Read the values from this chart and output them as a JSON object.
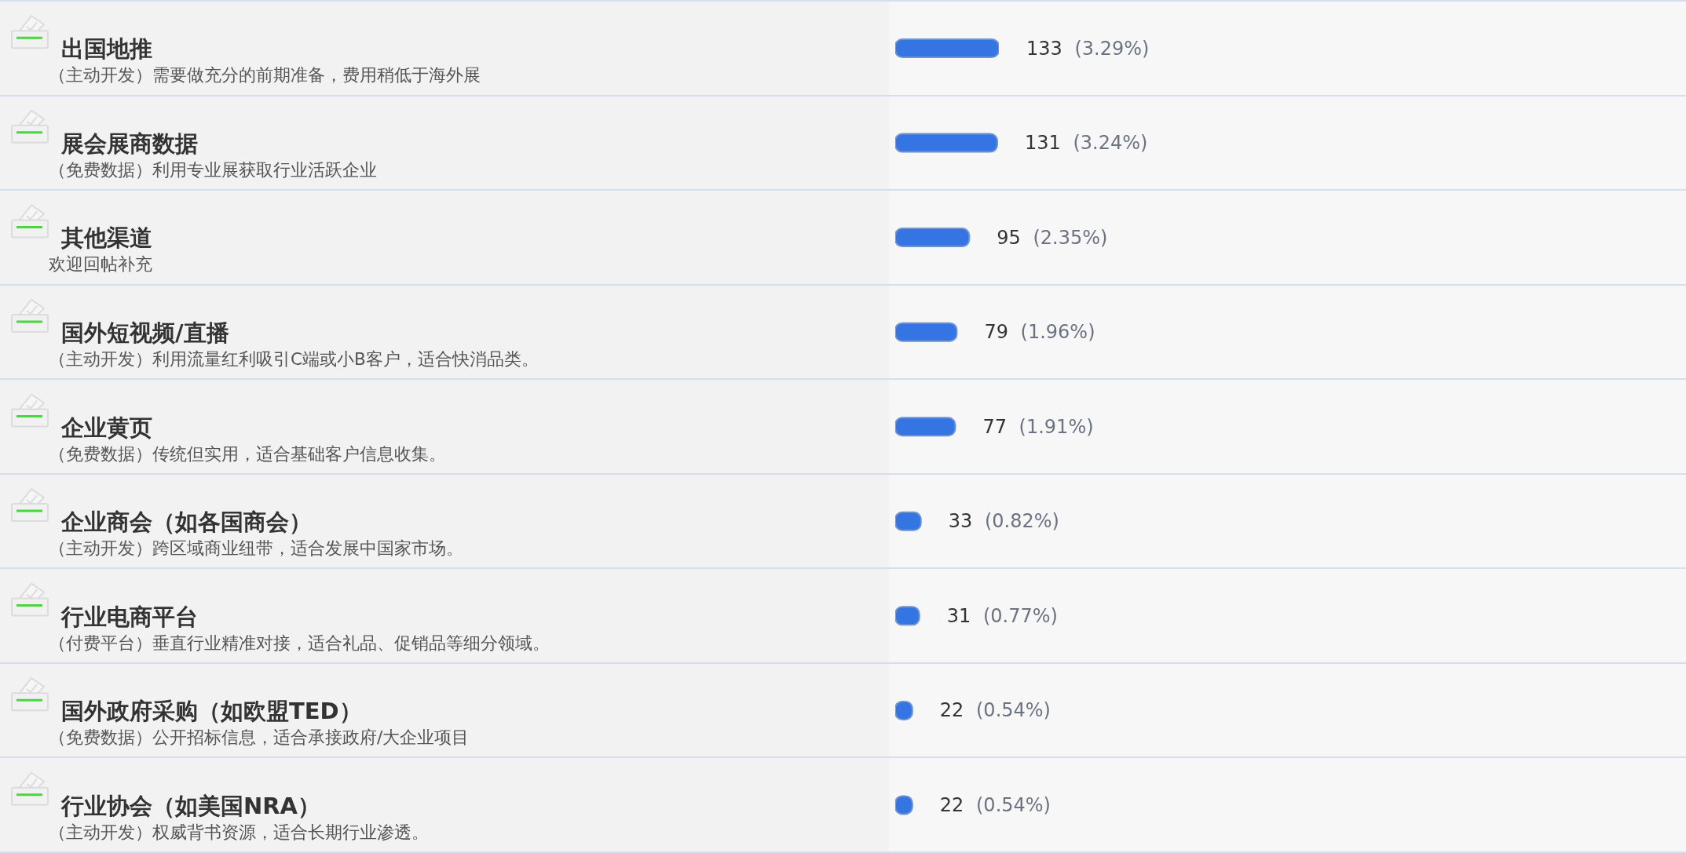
{
  "chart_data": {
    "type": "bar",
    "orientation": "horizontal",
    "categories": [
      "出国地推",
      "展会展商数据",
      "其他渠道",
      "国外短视频/直播",
      "企业黄页",
      "企业商会（如各国商会）",
      "行业电商平台",
      "国外政府采购（如欧盟TED）",
      "行业协会（如美国NRA）"
    ],
    "annotations": [
      "（主动开发）需要做充分的前期准备，费用稍低于海外展",
      "（免费数据）利用专业展获取行业活跃企业",
      "欢迎回帖补充",
      "（主动开发）利用流量红利吸引C端或小B客户，适合快消品类。",
      "（免费数据）传统但实用，适合基础客户信息收集。",
      "（主动开发）跨区域商业纽带，适合发展中国家市场。",
      "（付费平台）垂直行业精准对接，适合礼品、促销品等细分领域。",
      "（免费数据）公开招标信息，适合承接政府/大企业项目",
      "（主动开发）权威背书资源，适合长期行业渗透。"
    ],
    "values": [
      133,
      131,
      95,
      79,
      77,
      33,
      31,
      22,
      22
    ],
    "value_labels": [
      "133 (3.29%)",
      "131 (3.24%)",
      "95 (2.35%)",
      "79 (1.96%)",
      "77 (1.91%)",
      "33 (0.82%)",
      "31 (0.77%)",
      "22 (0.54%)",
      "22 (0.54%)"
    ],
    "color": "#3575e3",
    "grid": "y"
  }
}
